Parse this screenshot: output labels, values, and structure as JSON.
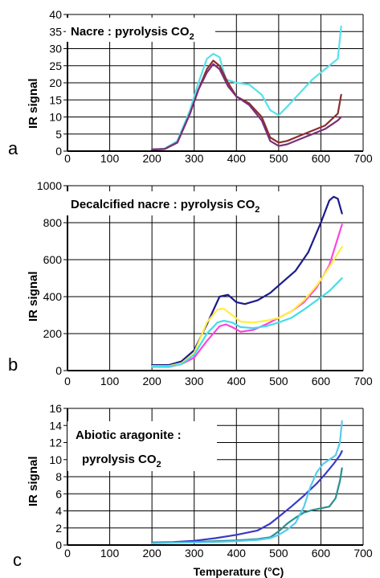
{
  "figure": {
    "xlabel": "Temperature (°C)"
  },
  "chart_data": [
    {
      "type": "line",
      "panel_label": "a",
      "title": "Nacre : pyrolysis CO",
      "title_sub": "2",
      "ylabel": "IR signal",
      "xlim": [
        0,
        700
      ],
      "ylim": [
        0,
        40
      ],
      "xticks": [
        "0",
        "100",
        "200",
        "300",
        "400",
        "500",
        "600",
        "700"
      ],
      "yticks": [
        "0",
        "5",
        "10",
        "15",
        "20",
        "25",
        "30",
        "35",
        "40"
      ],
      "grid": true,
      "series": [
        {
          "color": "#5ae0e8",
          "x": [
            200,
            230,
            260,
            290,
            310,
            330,
            345,
            360,
            375,
            400,
            430,
            460,
            480,
            500,
            520,
            550,
            580,
            610,
            640,
            648
          ],
          "y": [
            0.5,
            0.7,
            3,
            12,
            20,
            27,
            28.5,
            27.5,
            21,
            20,
            19.5,
            16.5,
            12,
            10.5,
            13,
            17,
            21,
            24,
            27,
            36.5
          ]
        },
        {
          "color": "#8b2e2e",
          "x": [
            200,
            230,
            260,
            290,
            310,
            330,
            345,
            360,
            380,
            400,
            430,
            460,
            480,
            500,
            520,
            550,
            580,
            610,
            640,
            648
          ],
          "y": [
            0.5,
            0.6,
            2.5,
            11,
            18,
            24,
            26.5,
            25,
            20,
            16,
            14,
            10,
            4,
            2.5,
            3,
            4.5,
            6,
            7.5,
            11,
            16.5
          ]
        },
        {
          "color": "#7a2f7a",
          "x": [
            200,
            230,
            260,
            290,
            310,
            330,
            345,
            360,
            380,
            400,
            430,
            460,
            480,
            500,
            520,
            550,
            580,
            610,
            640,
            648
          ],
          "y": [
            0.5,
            0.6,
            2.5,
            11,
            18,
            23,
            25.5,
            24,
            19,
            16,
            13.5,
            9,
            3,
            1.5,
            2,
            3.5,
            5,
            6.5,
            9,
            10
          ]
        }
      ]
    },
    {
      "type": "line",
      "panel_label": "b",
      "title": "Decalcified nacre : pyrolysis CO",
      "title_sub": "2",
      "ylabel": "IR signal",
      "xlim": [
        0,
        700
      ],
      "ylim": [
        0,
        1000
      ],
      "xticks": [
        "0",
        "100",
        "200",
        "300",
        "400",
        "500",
        "600",
        "700"
      ],
      "yticks": [
        "0",
        "200",
        "400",
        "600",
        "800",
        "1000"
      ],
      "grid": true,
      "series": [
        {
          "color": "#1a1a8c",
          "x": [
            200,
            240,
            270,
            300,
            330,
            360,
            380,
            400,
            420,
            450,
            480,
            510,
            540,
            570,
            600,
            620,
            630,
            640,
            650
          ],
          "y": [
            30,
            30,
            50,
            110,
            250,
            400,
            410,
            370,
            360,
            380,
            420,
            480,
            540,
            640,
            800,
            920,
            940,
            930,
            850
          ]
        },
        {
          "color": "#ff44dd",
          "x": [
            200,
            240,
            270,
            300,
            330,
            360,
            375,
            390,
            410,
            440,
            470,
            500,
            530,
            560,
            590,
            620,
            650
          ],
          "y": [
            20,
            20,
            35,
            70,
            160,
            240,
            250,
            235,
            210,
            220,
            250,
            285,
            320,
            370,
            450,
            570,
            790
          ]
        },
        {
          "color": "#ffee44",
          "x": [
            200,
            240,
            270,
            300,
            330,
            355,
            370,
            390,
            410,
            440,
            470,
            500,
            530,
            560,
            590,
            620,
            650
          ],
          "y": [
            25,
            25,
            40,
            95,
            260,
            330,
            335,
            300,
            265,
            260,
            270,
            285,
            320,
            380,
            460,
            560,
            670
          ]
        },
        {
          "color": "#44dde8",
          "x": [
            200,
            240,
            270,
            300,
            330,
            355,
            370,
            390,
            410,
            440,
            470,
            500,
            530,
            560,
            590,
            620,
            650
          ],
          "y": [
            20,
            22,
            35,
            85,
            200,
            260,
            270,
            260,
            235,
            230,
            240,
            260,
            285,
            330,
            380,
            430,
            500
          ]
        }
      ]
    },
    {
      "type": "line",
      "panel_label": "c",
      "title": "Abiotic aragonite :",
      "title_line2": "pyrolysis CO",
      "title_sub": "2",
      "ylabel": "IR signal",
      "xlim": [
        0,
        700
      ],
      "ylim": [
        0,
        16
      ],
      "xticks": [
        "0",
        "100",
        "200",
        "300",
        "400",
        "500",
        "600",
        "700"
      ],
      "yticks": [
        "0",
        "2",
        "4",
        "6",
        "8",
        "10",
        "12",
        "14",
        "16"
      ],
      "grid": true,
      "series": [
        {
          "color": "#3a3ac8",
          "x": [
            200,
            250,
            300,
            350,
            400,
            450,
            480,
            500,
            530,
            560,
            590,
            610,
            630,
            645,
            650
          ],
          "y": [
            0.3,
            0.35,
            0.5,
            0.8,
            1.2,
            1.7,
            2.5,
            3.3,
            4.5,
            5.8,
            7.2,
            8.3,
            9.5,
            10.5,
            11
          ]
        },
        {
          "color": "#2b8f8f",
          "x": [
            200,
            250,
            300,
            350,
            400,
            450,
            480,
            500,
            520,
            540,
            560,
            580,
            600,
            620,
            635,
            645,
            650
          ],
          "y": [
            0.25,
            0.3,
            0.35,
            0.45,
            0.55,
            0.7,
            0.9,
            1.6,
            2.5,
            3.2,
            3.8,
            4.1,
            4.3,
            4.5,
            5.5,
            7.5,
            9
          ]
        },
        {
          "color": "#55ccee",
          "x": [
            200,
            250,
            300,
            350,
            400,
            450,
            480,
            500,
            520,
            540,
            560,
            575,
            590,
            605,
            620,
            635,
            645,
            650
          ],
          "y": [
            0.2,
            0.25,
            0.3,
            0.35,
            0.45,
            0.6,
            0.8,
            1.2,
            1.8,
            2.6,
            4.5,
            6.8,
            8.5,
            9.5,
            10,
            10.5,
            12,
            14.5
          ]
        }
      ]
    }
  ]
}
